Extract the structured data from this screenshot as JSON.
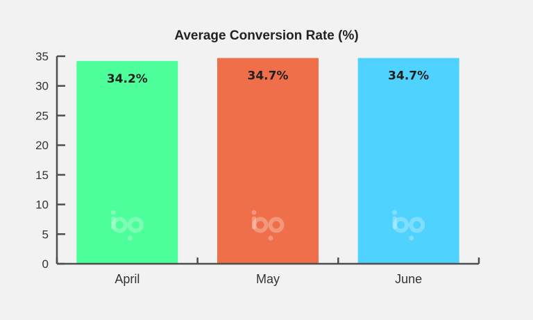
{
  "chart_data": {
    "type": "bar",
    "title": "Average Conversion Rate (%)",
    "xlabel": "",
    "ylabel": "",
    "categories": [
      "April",
      "May",
      "June"
    ],
    "values": [
      34.2,
      34.7,
      34.7
    ],
    "data_labels": [
      "34.2%",
      "34.7%",
      "34.7%"
    ],
    "colors": [
      "#4dff9a",
      "#ef6f4a",
      "#4fd2fd"
    ],
    "ylim": [
      0,
      35
    ],
    "yticks": [
      0,
      5,
      10,
      15,
      20,
      25,
      30,
      35
    ],
    "grid": false,
    "legend": "none",
    "watermark_icon": "bp-logo-icon"
  }
}
